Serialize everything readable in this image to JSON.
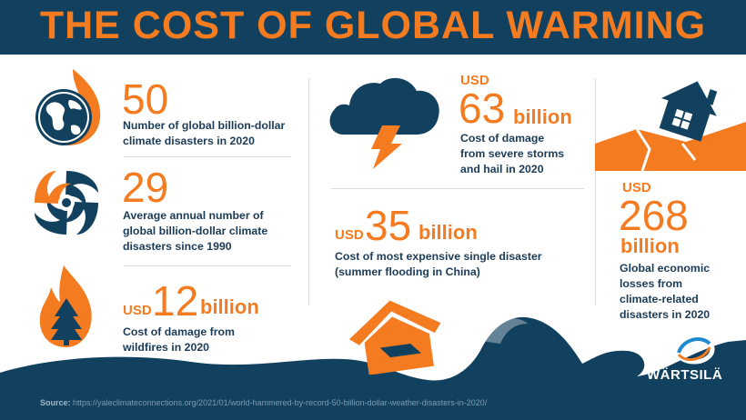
{
  "title": "THE COST OF GLOBAL WARMING",
  "stats": {
    "disasters_2020": {
      "value": "50",
      "desc": [
        "Number of global billion-dollar",
        "climate disasters in 2020"
      ],
      "icon": "burning-globe-icon"
    },
    "annual_average": {
      "value": "29",
      "desc": [
        "Average annual number of",
        "global billion-dollar climate",
        "disasters since 1990"
      ],
      "icon": "hurricane-icon"
    },
    "wildfires": {
      "currency": "USD",
      "value": "12",
      "unit": "billion",
      "desc": [
        "Cost of damage from",
        "wildfires in 2020"
      ],
      "icon": "wildfire-tree-icon"
    },
    "storms": {
      "currency": "USD",
      "value": "63",
      "unit": "billion",
      "desc": [
        "Cost of damage",
        "from severe storms",
        "and hail in 2020"
      ],
      "icon": "storm-cloud-icon"
    },
    "single_disaster": {
      "currency": "USD",
      "value": "35",
      "unit": "billion",
      "desc": [
        "Cost of most expensive single disaster",
        "(summer flooding in China)"
      ],
      "icon": "flooded-house-icon"
    },
    "global_losses": {
      "currency": "USD",
      "value": "268",
      "unit": "billion",
      "desc": [
        "Global economic",
        "losses from",
        "climate-related",
        "disasters in 2020"
      ],
      "icon": "collapsing-house-icon"
    }
  },
  "source": {
    "label": "Source:",
    "url": "https://yaleclimateconnections.org/2021/01/world-hammered-by-record-50-billion-dollar-weather-disasters-in-2020/"
  },
  "logo": {
    "name": "WÄRTSILÄ",
    "icon": "wartsila-swirl-icon"
  },
  "colors": {
    "navy": "#12415f",
    "orange": "#f47b20",
    "text": "#1b3b57"
  }
}
